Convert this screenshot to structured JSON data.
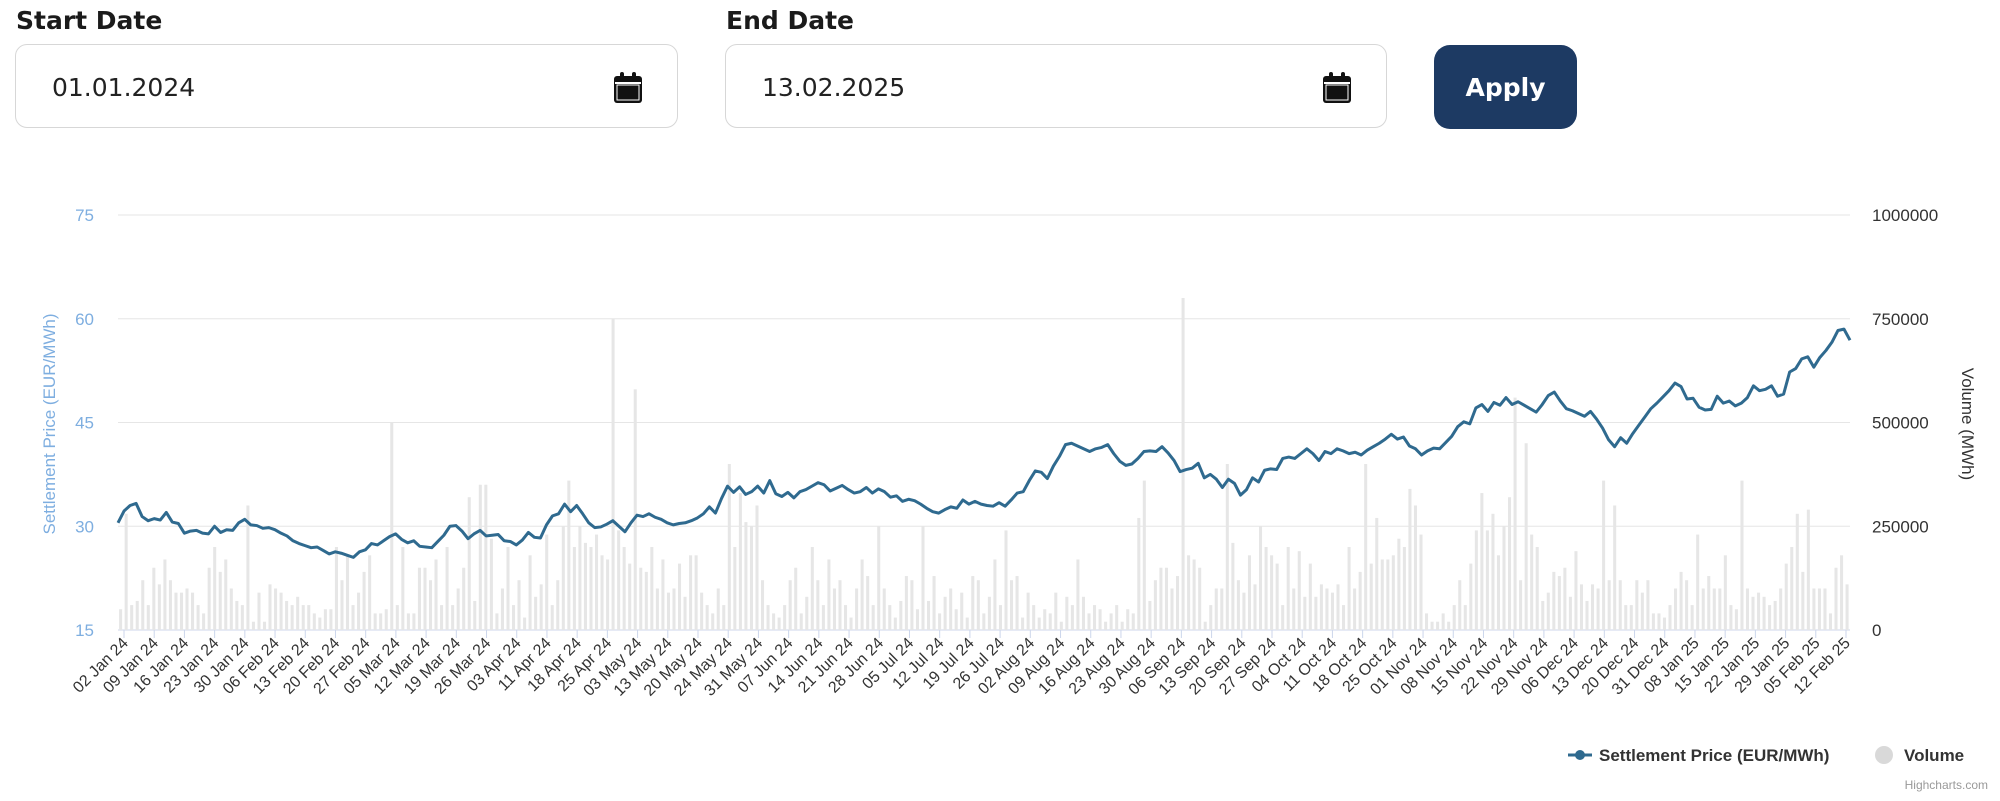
{
  "filters": {
    "start_label": "Start Date",
    "start_value": "01.01.2024",
    "end_label": "End Date",
    "end_value": "13.02.2025",
    "apply_label": "Apply"
  },
  "colors": {
    "line": "#2f6a8f",
    "bars": "#e6e6e6",
    "left_axis": "#7eaee0",
    "button": "#1d3a63"
  },
  "icons": {
    "calendar": "calendar-icon"
  },
  "credits": "Highcharts.com",
  "chart_data": {
    "type": "line",
    "xlabel": "",
    "x_ticks": [
      "02 Jan 24",
      "09 Jan 24",
      "16 Jan 24",
      "23 Jan 24",
      "30 Jan 24",
      "06 Feb 24",
      "13 Feb 24",
      "20 Feb 24",
      "27 Feb 24",
      "05 Mar 24",
      "12 Mar 24",
      "19 Mar 24",
      "26 Mar 24",
      "03 Apr 24",
      "11 Apr 24",
      "18 Apr 24",
      "25 Apr 24",
      "03 May 24",
      "13 May 24",
      "20 May 24",
      "24 May 24",
      "31 May 24",
      "07 Jun 24",
      "14 Jun 24",
      "21 Jun 24",
      "28 Jun 24",
      "05 Jul 24",
      "12 Jul 24",
      "19 Jul 24",
      "26 Jul 24",
      "02 Aug 24",
      "09 Aug 24",
      "16 Aug 24",
      "23 Aug 24",
      "30 Aug 24",
      "06 Sep 24",
      "13 Sep 24",
      "20 Sep 24",
      "27 Sep 24",
      "04 Oct 24",
      "11 Oct 24",
      "18 Oct 24",
      "25 Oct 24",
      "01 Nov 24",
      "08 Nov 24",
      "15 Nov 24",
      "22 Nov 24",
      "29 Nov 24",
      "06 Dec 24",
      "13 Dec 24",
      "20 Dec 24",
      "31 Dec 24",
      "08 Jan 25",
      "15 Jan 25",
      "22 Jan 25",
      "29 Jan 25",
      "05 Feb 25",
      "12 Feb 25"
    ],
    "y_left": {
      "label": "Settlement Price (EUR/MWh)",
      "min": 15,
      "max": 75,
      "ticks": [
        "15",
        "30",
        "45",
        "60",
        "75"
      ]
    },
    "y_right": {
      "label": "Volume (MWh)",
      "min": 0,
      "max": 1000000,
      "ticks": [
        "0",
        "250000",
        "500000",
        "750000",
        "1000000"
      ]
    },
    "legend": {
      "position": "bottom-right",
      "items": [
        "Settlement Price (EUR/MWh)",
        "Volume"
      ]
    },
    "grid": true,
    "series": [
      {
        "name": "Settlement Price (EUR/MWh)",
        "type": "line",
        "axis": "left",
        "values": [
          30.5,
          32.2,
          33.0,
          33.3,
          31.4,
          30.8,
          31.1,
          30.9,
          32.0,
          30.6,
          30.4,
          29.0,
          29.3,
          29.4,
          29.0,
          28.9,
          30.0,
          29.1,
          29.5,
          29.4,
          30.5,
          31.0,
          30.2,
          30.1,
          29.7,
          29.8,
          29.5,
          29.0,
          28.6,
          27.9,
          27.5,
          27.2,
          26.9,
          27.0,
          26.5,
          26.0,
          26.3,
          26.1,
          25.8,
          25.5,
          26.3,
          26.6,
          27.5,
          27.3,
          27.9,
          28.5,
          28.9,
          28.1,
          27.6,
          27.9,
          27.1,
          27.0,
          26.9,
          27.8,
          28.7,
          30.0,
          30.1,
          29.3,
          28.2,
          28.9,
          29.4,
          28.6,
          28.7,
          28.8,
          27.9,
          27.8,
          27.3,
          28.0,
          29.1,
          28.4,
          28.3,
          30.2,
          31.5,
          31.8,
          33.2,
          32.1,
          33.0,
          31.8,
          30.5,
          29.8,
          29.9,
          30.3,
          30.8,
          30.0,
          29.2,
          30.5,
          31.6,
          31.4,
          31.8,
          31.3,
          31.0,
          30.5,
          30.2,
          30.4,
          30.5,
          30.8,
          31.2,
          31.8,
          32.8,
          31.9,
          34.0,
          35.8,
          34.9,
          35.7,
          34.6,
          35.0,
          35.8,
          34.8,
          36.6,
          34.7,
          34.3,
          34.9,
          34.1,
          35.0,
          35.3,
          35.8,
          36.3,
          36.0,
          35.1,
          35.5,
          35.9,
          35.3,
          34.8,
          35.0,
          35.6,
          34.8,
          35.4,
          35.0,
          34.2,
          34.4,
          33.6,
          33.9,
          33.7,
          33.2,
          32.6,
          32.1,
          31.9,
          32.4,
          32.8,
          32.6,
          33.8,
          33.2,
          33.6,
          33.2,
          33.0,
          32.9,
          33.4,
          32.9,
          33.8,
          34.8,
          35.0,
          36.6,
          38.0,
          37.8,
          36.9,
          38.7,
          40.1,
          41.8,
          42.0,
          41.6,
          41.2,
          40.8,
          41.2,
          41.4,
          41.8,
          40.5,
          39.4,
          38.8,
          39.0,
          39.8,
          40.8,
          40.9,
          40.8,
          41.5,
          40.6,
          39.5,
          37.9,
          38.2,
          38.4,
          39.1,
          37.0,
          37.5,
          36.8,
          35.6,
          36.8,
          36.2,
          34.5,
          35.3,
          37.0,
          36.4,
          38.1,
          38.3,
          38.2,
          39.8,
          40.0,
          39.8,
          40.5,
          41.2,
          40.5,
          39.5,
          40.8,
          40.5,
          41.2,
          40.9,
          40.5,
          40.7,
          40.3,
          41.0,
          41.5,
          42.0,
          42.6,
          43.3,
          42.6,
          42.9,
          41.6,
          41.2,
          40.3,
          40.9,
          41.3,
          41.2,
          42.1,
          43.0,
          44.4,
          45.1,
          44.8,
          47.1,
          47.6,
          46.6,
          47.9,
          47.5,
          48.6,
          47.6,
          48.0,
          47.5,
          47.0,
          46.5,
          47.6,
          48.9,
          49.4,
          48.1,
          47.0,
          46.7,
          46.3,
          45.9,
          46.6,
          45.5,
          44.2,
          42.5,
          41.5,
          42.8,
          42.0,
          43.4,
          44.6,
          45.8,
          47.0,
          47.8,
          48.7,
          49.6,
          50.7,
          50.2,
          48.4,
          48.5,
          47.2,
          46.8,
          46.9,
          48.8,
          47.8,
          48.1,
          47.4,
          47.8,
          48.6,
          50.3,
          49.6,
          49.8,
          50.3,
          48.8,
          49.1,
          52.3,
          52.8,
          54.2,
          54.5,
          53.0,
          54.4,
          55.4,
          56.6,
          58.3,
          58.5,
          56.9
        ]
      },
      {
        "name": "Volume",
        "type": "column",
        "axis": "right",
        "values": [
          50000,
          280000,
          60000,
          70000,
          120000,
          60000,
          150000,
          110000,
          170000,
          120000,
          90000,
          90000,
          100000,
          90000,
          60000,
          40000,
          150000,
          200000,
          140000,
          170000,
          100000,
          70000,
          60000,
          300000,
          20000,
          90000,
          20000,
          110000,
          100000,
          90000,
          70000,
          60000,
          80000,
          60000,
          60000,
          40000,
          30000,
          50000,
          50000,
          200000,
          120000,
          180000,
          60000,
          90000,
          140000,
          180000,
          40000,
          40000,
          50000,
          500000,
          60000,
          200000,
          40000,
          40000,
          150000,
          150000,
          120000,
          170000,
          60000,
          200000,
          60000,
          100000,
          150000,
          320000,
          70000,
          350000,
          350000,
          220000,
          40000,
          100000,
          200000,
          60000,
          120000,
          30000,
          180000,
          80000,
          110000,
          230000,
          60000,
          120000,
          250000,
          360000,
          200000,
          250000,
          210000,
          200000,
          230000,
          180000,
          170000,
          750000,
          240000,
          200000,
          160000,
          580000,
          150000,
          140000,
          200000,
          100000,
          170000,
          90000,
          100000,
          160000,
          80000,
          180000,
          180000,
          90000,
          60000,
          40000,
          100000,
          60000,
          400000,
          200000,
          330000,
          260000,
          250000,
          300000,
          120000,
          60000,
          40000,
          30000,
          60000,
          120000,
          150000,
          40000,
          80000,
          200000,
          120000,
          60000,
          170000,
          100000,
          120000,
          60000,
          30000,
          100000,
          170000,
          130000,
          60000,
          250000,
          100000,
          60000,
          30000,
          70000,
          130000,
          120000,
          50000,
          250000,
          70000,
          130000,
          40000,
          80000,
          100000,
          50000,
          90000,
          30000,
          130000,
          120000,
          40000,
          80000,
          170000,
          60000,
          240000,
          120000,
          130000,
          30000,
          90000,
          60000,
          30000,
          50000,
          40000,
          90000,
          20000,
          80000,
          60000,
          170000,
          80000,
          40000,
          60000,
          50000,
          20000,
          40000,
          60000,
          20000,
          50000,
          40000,
          270000,
          360000,
          70000,
          120000,
          150000,
          150000,
          100000,
          130000,
          800000,
          180000,
          170000,
          150000,
          20000,
          60000,
          100000,
          100000,
          400000,
          210000,
          120000,
          90000,
          180000,
          110000,
          250000,
          200000,
          180000,
          160000,
          60000,
          200000,
          100000,
          190000,
          80000,
          160000,
          80000,
          110000,
          100000,
          90000,
          110000,
          60000,
          200000,
          100000,
          140000,
          400000,
          160000,
          270000,
          170000,
          170000,
          180000,
          220000,
          200000,
          340000,
          300000,
          230000,
          40000,
          20000,
          20000,
          40000,
          20000,
          60000,
          120000,
          60000,
          160000,
          240000,
          330000,
          240000,
          280000,
          180000,
          250000,
          320000,
          560000,
          120000,
          450000,
          230000,
          200000,
          70000,
          90000,
          140000,
          130000,
          150000,
          80000,
          190000,
          110000,
          70000,
          110000,
          100000,
          360000,
          120000,
          300000,
          120000,
          60000,
          60000,
          120000,
          90000,
          120000,
          40000,
          40000,
          30000,
          60000,
          100000,
          140000,
          120000,
          60000,
          230000,
          100000,
          130000,
          100000,
          100000,
          180000,
          60000,
          50000,
          360000,
          100000,
          80000,
          90000,
          80000,
          60000,
          70000,
          100000,
          160000,
          200000,
          280000,
          140000,
          290000,
          100000,
          100000,
          100000,
          40000,
          150000,
          180000,
          110000
        ]
      }
    ]
  }
}
